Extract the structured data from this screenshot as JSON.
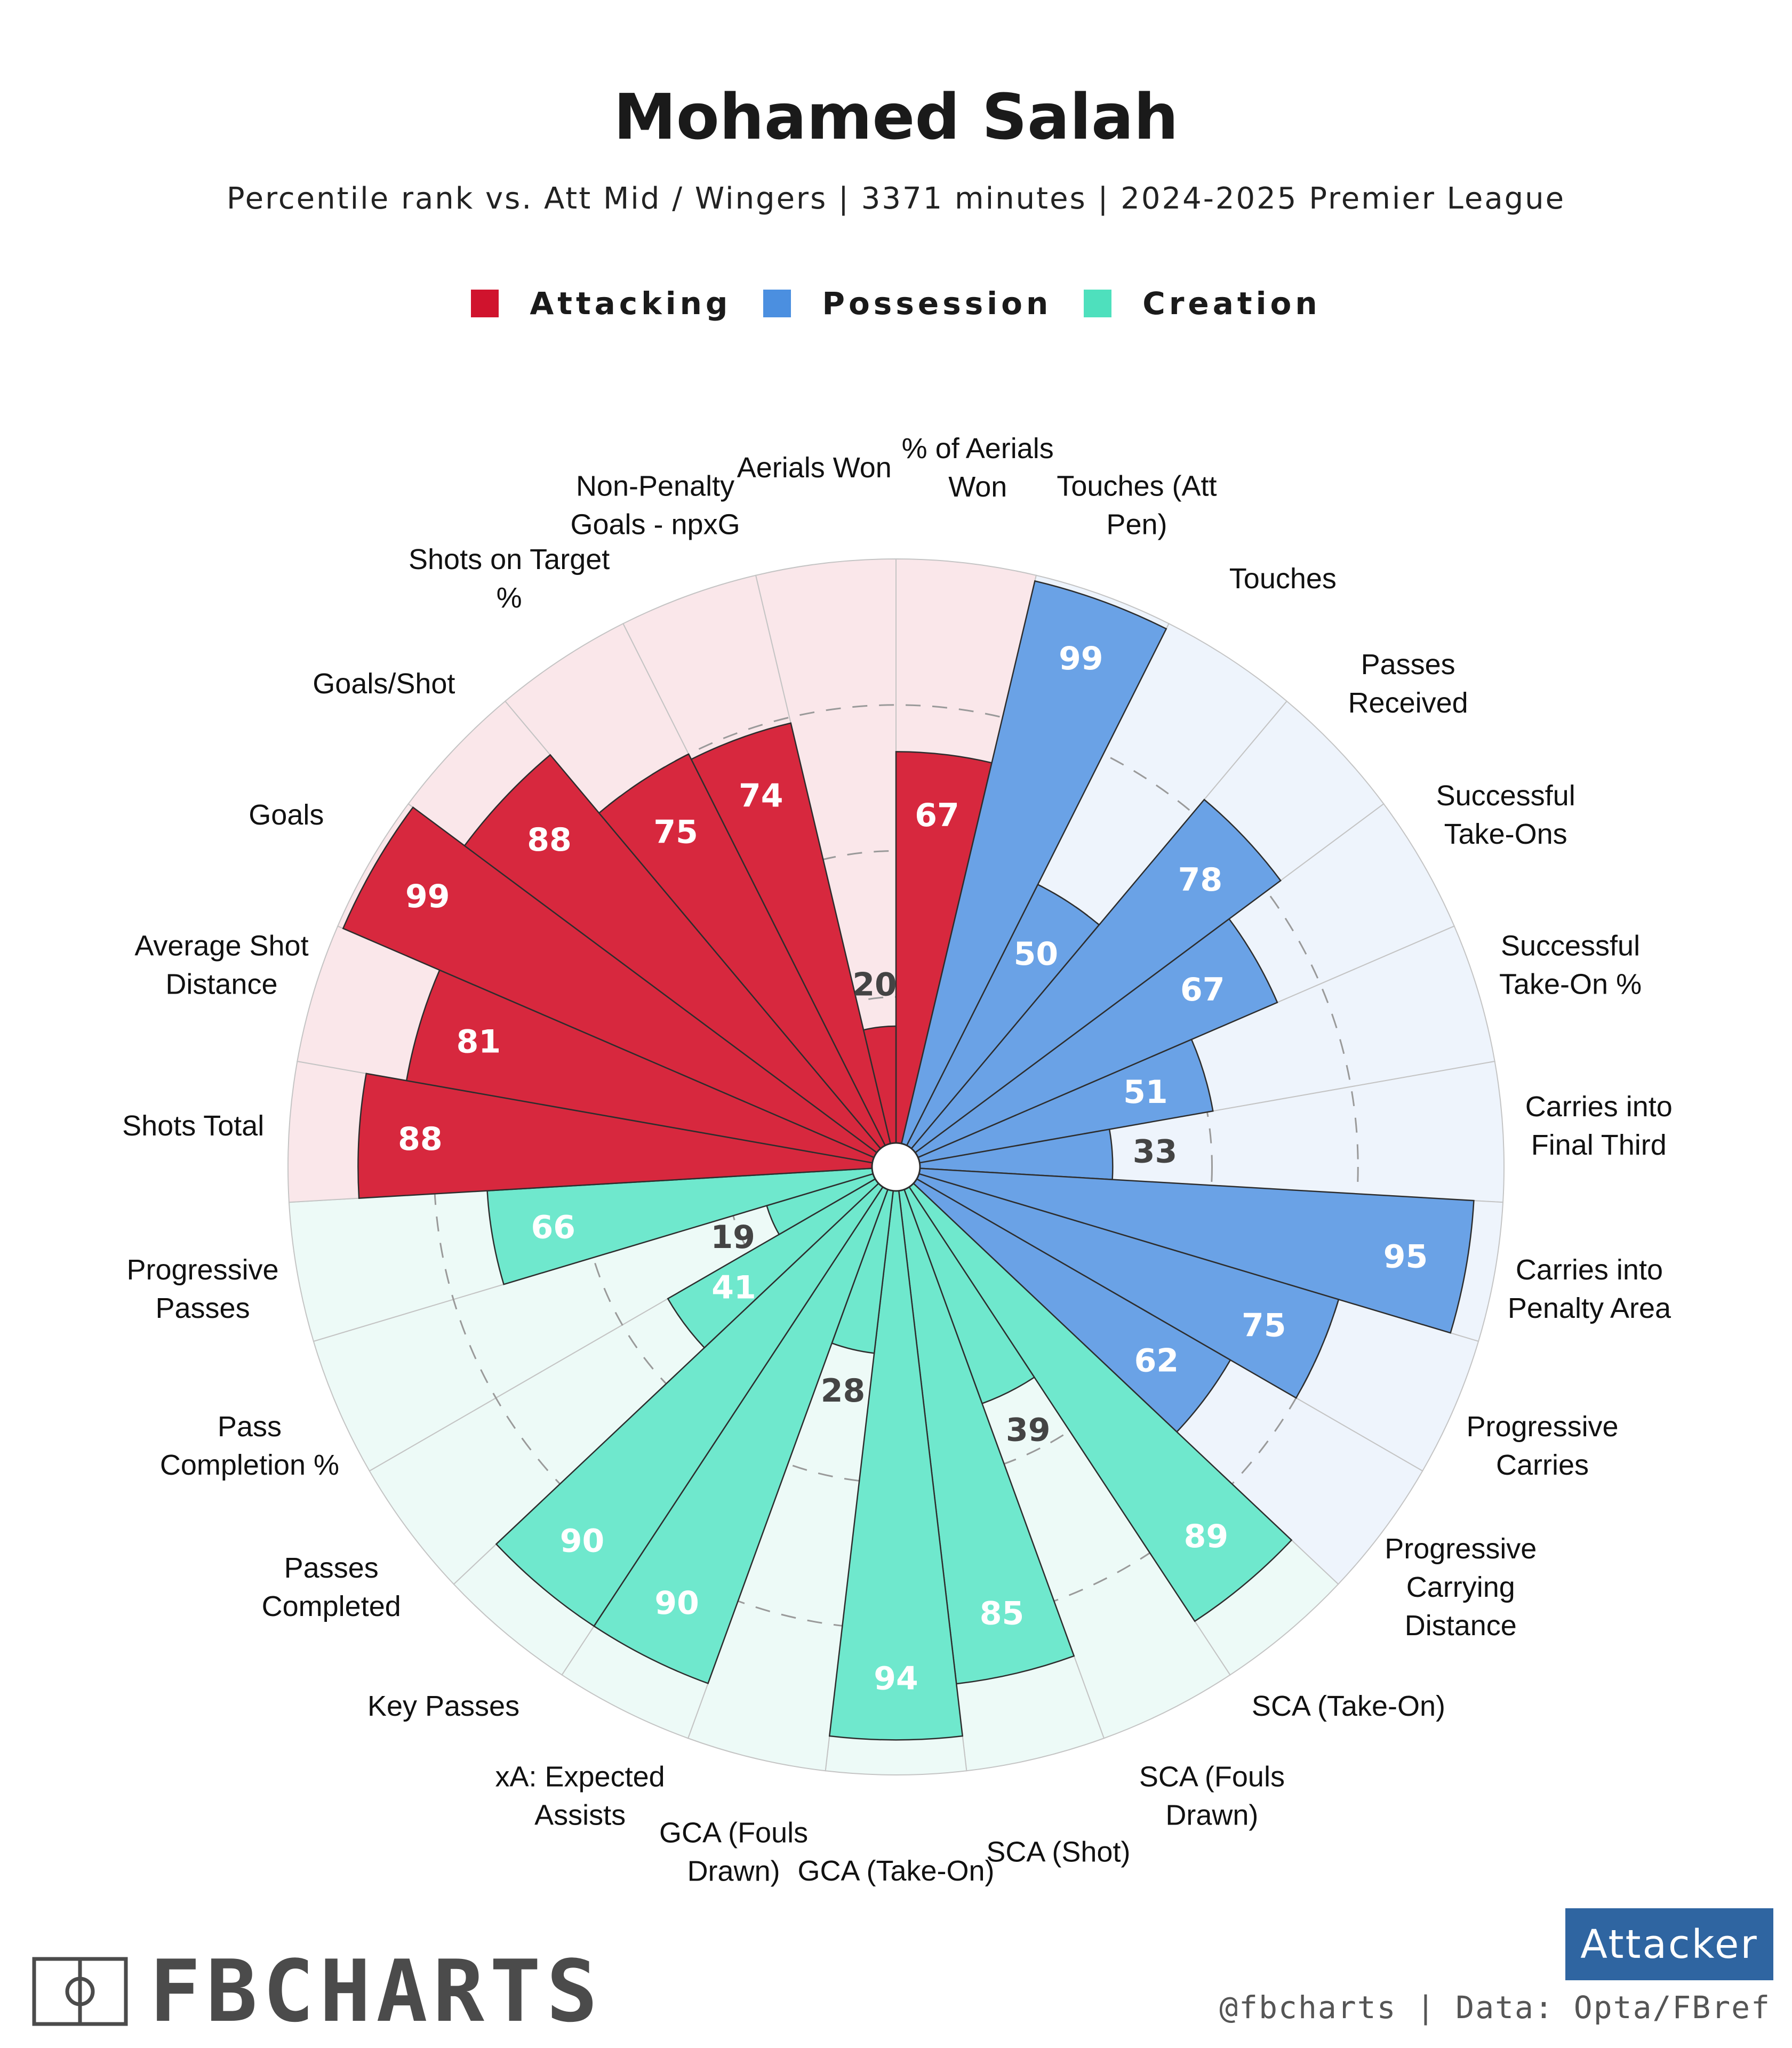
{
  "header": {
    "title": "Mohamed Salah",
    "subtitle": "Percentile rank vs. Att Mid / Wingers | 3371 minutes | 2024-2025 Premier League"
  },
  "legend": [
    {
      "name": "Attacking",
      "color": "#d0132d"
    },
    {
      "name": "Possession",
      "color": "#4b8fe0"
    },
    {
      "name": "Creation",
      "color": "#4ee0bd"
    }
  ],
  "chart_data": {
    "type": "polar-bar",
    "scale": [
      0,
      100
    ],
    "gridlines": [
      25,
      50,
      75
    ],
    "groups": {
      "Attacking": {
        "bar": "#d7283e",
        "background": "#fae7ea"
      },
      "Possession": {
        "bar": "#6aa2e6",
        "background": "#eef4fc"
      },
      "Creation": {
        "bar": "#6fe8cd",
        "background": "#edfaf7"
      }
    },
    "metrics": [
      {
        "label": "% of Aerials Won",
        "value": 67,
        "group": "Attacking"
      },
      {
        "label": "Touches (Att Pen)",
        "value": 99,
        "group": "Possession"
      },
      {
        "label": "Touches",
        "value": 50,
        "group": "Possession"
      },
      {
        "label": "Passes Received",
        "value": 78,
        "group": "Possession"
      },
      {
        "label": "Successful Take-Ons",
        "value": 67,
        "group": "Possession"
      },
      {
        "label": "Successful Take-On %",
        "value": 51,
        "group": "Possession"
      },
      {
        "label": "Carries into Final Third",
        "value": 33,
        "group": "Possession"
      },
      {
        "label": "Carries into Penalty Area",
        "value": 95,
        "group": "Possession"
      },
      {
        "label": "Progressive Carries",
        "value": 75,
        "group": "Possession"
      },
      {
        "label": "Progressive Carrying Distance",
        "value": 62,
        "group": "Possession"
      },
      {
        "label": "SCA (Take-On)",
        "value": 89,
        "group": "Creation"
      },
      {
        "label": "SCA (Fouls Drawn)",
        "value": 39,
        "group": "Creation"
      },
      {
        "label": "SCA (Shot)",
        "value": 85,
        "group": "Creation"
      },
      {
        "label": "GCA (Take-On)",
        "value": 94,
        "group": "Creation"
      },
      {
        "label": "GCA (Fouls Drawn)",
        "value": 28,
        "group": "Creation"
      },
      {
        "label": "xA: Expected Assists",
        "value": 90,
        "group": "Creation"
      },
      {
        "label": "Key Passes",
        "value": 90,
        "group": "Creation"
      },
      {
        "label": "Passes Completed",
        "value": 41,
        "group": "Creation"
      },
      {
        "label": "Pass Completion %",
        "value": 19,
        "group": "Creation"
      },
      {
        "label": "Progressive Passes",
        "value": 66,
        "group": "Creation"
      },
      {
        "label": "Shots Total",
        "value": 88,
        "group": "Attacking"
      },
      {
        "label": "Average Shot Distance",
        "value": 81,
        "group": "Attacking"
      },
      {
        "label": "Goals",
        "value": 99,
        "group": "Attacking"
      },
      {
        "label": "Goals/Shot",
        "value": 88,
        "group": "Attacking"
      },
      {
        "label": "Shots on Target %",
        "value": 75,
        "group": "Attacking"
      },
      {
        "label": "Non-Penalty Goals - npxG",
        "value": 74,
        "group": "Attacking"
      },
      {
        "label": "Aerials Won",
        "value": 20,
        "group": "Attacking"
      }
    ],
    "label_lines": {
      "% of Aerials Won": [
        "% of Aerials",
        "Won"
      ],
      "Touches (Att Pen)": [
        "Touches (Att",
        "Pen)"
      ],
      "Touches": [
        "Touches"
      ],
      "Passes Received": [
        "Passes",
        "Received"
      ],
      "Successful Take-Ons": [
        "Successful",
        "Take-Ons"
      ],
      "Successful Take-On %": [
        "Successful",
        "Take-On %"
      ],
      "Carries into Final Third": [
        "Carries into",
        "Final Third"
      ],
      "Carries into Penalty Area": [
        "Carries into",
        "Penalty Area"
      ],
      "Progressive Carries": [
        "Progressive",
        "Carries"
      ],
      "Progressive Carrying Distance": [
        "Progressive",
        "Carrying",
        "Distance"
      ],
      "SCA (Take-On)": [
        "SCA (Take-On)"
      ],
      "SCA (Fouls Drawn)": [
        "SCA (Fouls",
        "Drawn)"
      ],
      "SCA (Shot)": [
        "SCA (Shot)"
      ],
      "GCA (Take-On)": [
        "GCA (Take-On)"
      ],
      "GCA (Fouls Drawn)": [
        "GCA (Fouls",
        "Drawn)"
      ],
      "xA: Expected Assists": [
        "xA: Expected",
        "Assists"
      ],
      "Key Passes": [
        "Key Passes"
      ],
      "Passes Completed": [
        "Passes",
        "Completed"
      ],
      "Pass Completion %": [
        "Pass",
        "Completion %"
      ],
      "Progressive Passes": [
        "Progressive",
        "Passes"
      ],
      "Shots Total": [
        "Shots Total"
      ],
      "Average Shot Distance": [
        "Average Shot",
        "Distance"
      ],
      "Goals": [
        "Goals"
      ],
      "Goals/Shot": [
        "Goals/Shot"
      ],
      "Shots on Target %": [
        "Shots on Target",
        "%"
      ],
      "Non-Penalty Goals - npxG": [
        "Non-Penalty",
        "Goals - npxG"
      ],
      "Aerials Won": [
        "Aerials Won"
      ]
    }
  },
  "footer": {
    "logo_text": "FBCHARTS",
    "role_badge": "Attacker",
    "credit": "@fbcharts | Data: Opta/FBref"
  }
}
